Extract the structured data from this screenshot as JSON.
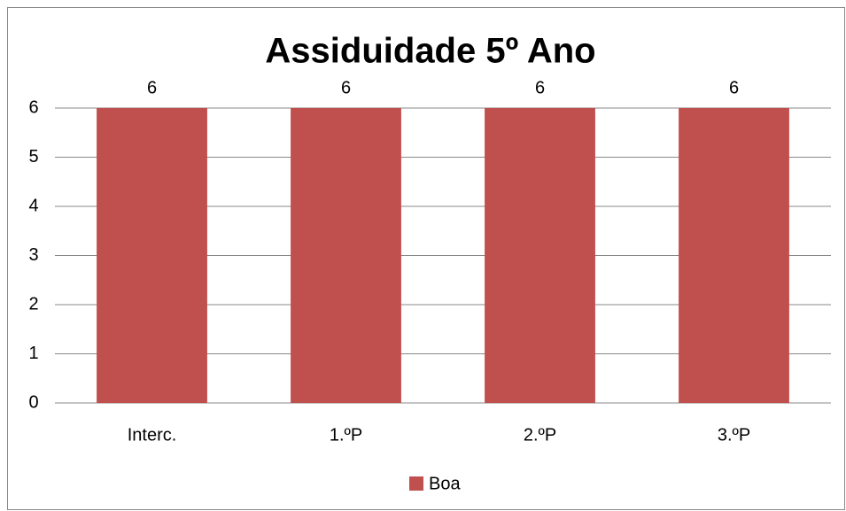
{
  "chart_data": {
    "type": "bar",
    "title": "Assiduidade 5º Ano",
    "categories": [
      "Interc.",
      "1.ºP",
      "2.ºP",
      "3.ºP"
    ],
    "series": [
      {
        "name": "Boa",
        "color": "#c0504d",
        "values": [
          6,
          6,
          6,
          6
        ]
      }
    ],
    "ylim": [
      0,
      6
    ],
    "yticks": [
      0,
      1,
      2,
      3,
      4,
      5,
      6
    ],
    "grid": true,
    "legend": "bottom"
  }
}
